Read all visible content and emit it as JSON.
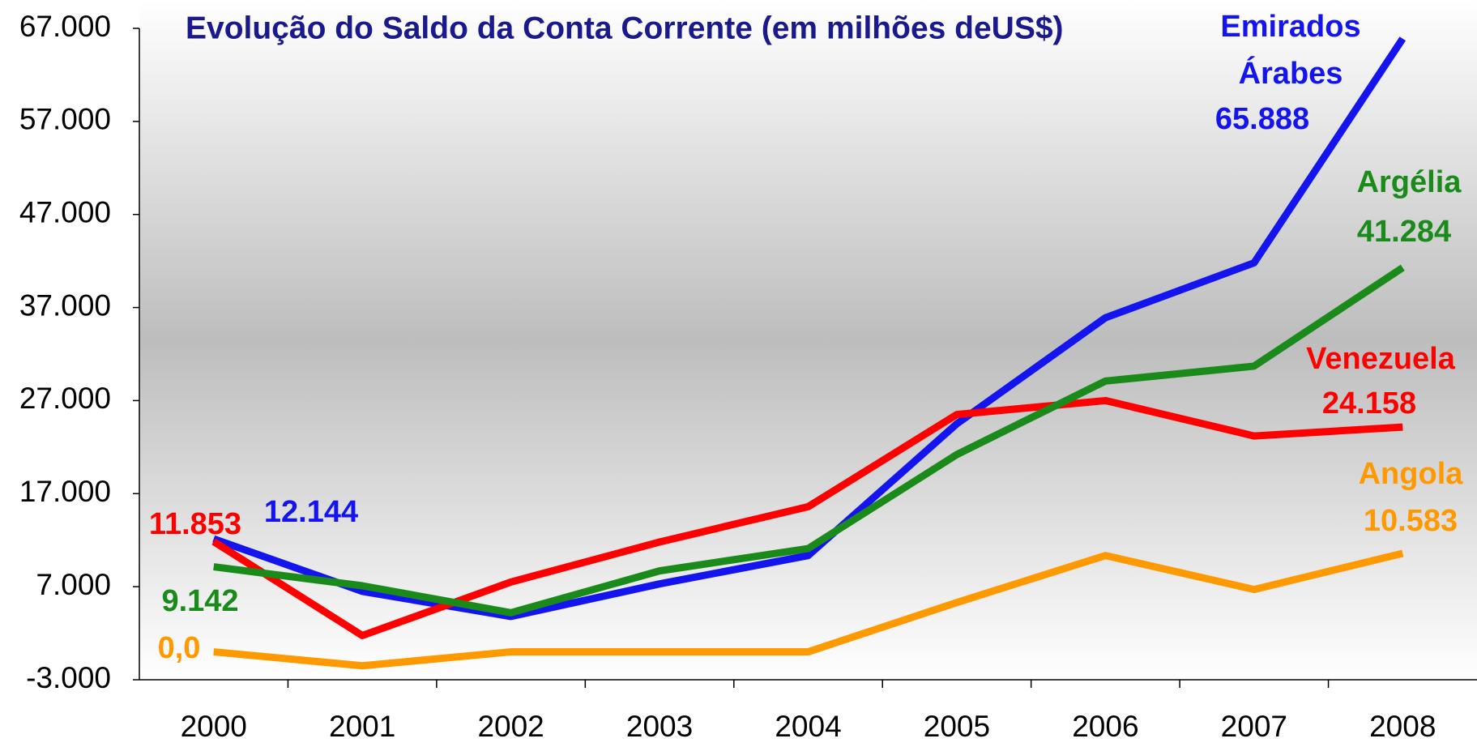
{
  "chart_data": {
    "type": "line",
    "title": "Evolução do Saldo da Conta Corrente (em milhões deUS$)",
    "categories": [
      "2000",
      "2001",
      "2002",
      "2003",
      "2004",
      "2005",
      "2006",
      "2007",
      "2008"
    ],
    "series": [
      {
        "name": "Emirados Árabes",
        "color": "#1414ee",
        "values": [
          12144,
          6500,
          3800,
          7300,
          10350,
          24500,
          35900,
          41800,
          65888
        ],
        "value_labels": [
          "12.144",
          null,
          null,
          null,
          null,
          null,
          null,
          null,
          "65.888"
        ]
      },
      {
        "name": "Venezuela",
        "color": "#ff0000",
        "values": [
          11853,
          1750,
          7500,
          11800,
          15600,
          25500,
          27000,
          23200,
          24158
        ],
        "value_labels": [
          "11.853",
          null,
          null,
          null,
          null,
          null,
          null,
          null,
          "24.158"
        ]
      },
      {
        "name": "Argélia",
        "color": "#1a8a1a",
        "values": [
          9142,
          7100,
          4200,
          8700,
          11100,
          21200,
          29100,
          30700,
          41284
        ],
        "value_labels": [
          "9.142",
          null,
          null,
          null,
          null,
          null,
          null,
          null,
          "41.284"
        ]
      },
      {
        "name": "Angola",
        "color": "#ff9900",
        "values": [
          0,
          -1500,
          0,
          0,
          0,
          5300,
          10350,
          6700,
          10583
        ],
        "value_labels": [
          "0,0",
          null,
          null,
          null,
          null,
          null,
          null,
          null,
          "10.583"
        ]
      }
    ],
    "ylim": [
      -3000,
      67000
    ],
    "yticks": [
      {
        "value": -3000,
        "label": "-3.000"
      },
      {
        "value": 7000,
        "label": "7.000"
      },
      {
        "value": 17000,
        "label": "17.000"
      },
      {
        "value": 27000,
        "label": "27.000"
      },
      {
        "value": 37000,
        "label": "37.000"
      },
      {
        "value": 47000,
        "label": "47.000"
      },
      {
        "value": 57000,
        "label": "57.000"
      },
      {
        "value": 67000,
        "label": "67.000"
      }
    ],
    "grid": false
  }
}
